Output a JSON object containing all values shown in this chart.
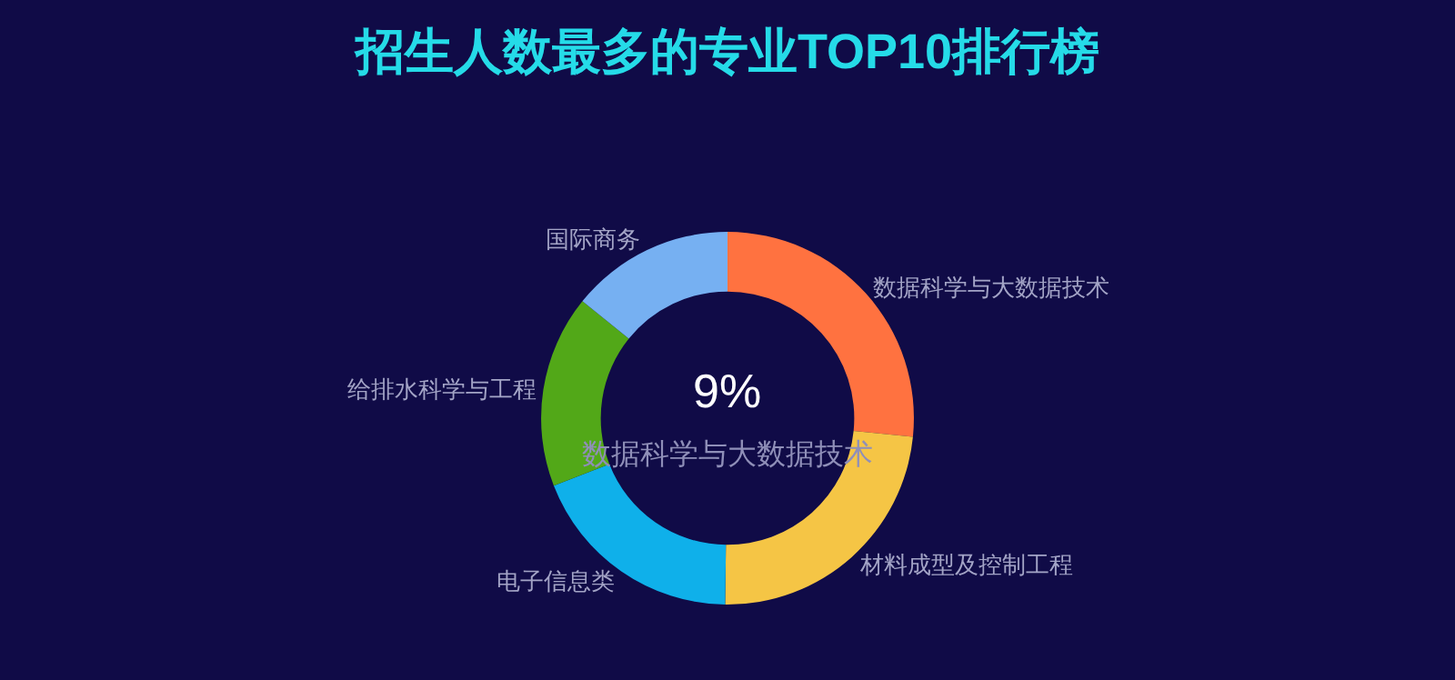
{
  "chart_data": {
    "type": "donut",
    "title": "招生人数最多的专业TOP10排行榜",
    "categories": [
      "数据科学与大数据技术",
      "材料成型及控制工程",
      "电子信息类",
      "给排水科学与工程",
      "国际商务"
    ],
    "values": [
      26.6,
      23.6,
      18.9,
      16.7,
      14.2
    ],
    "colors": [
      "#ff7240",
      "#f5c545",
      "#0fb0ea",
      "#52a818",
      "#76b0f2"
    ],
    "annotations": [
      "9%",
      "数据科学与大数据技术"
    ],
    "legend": false
  }
}
